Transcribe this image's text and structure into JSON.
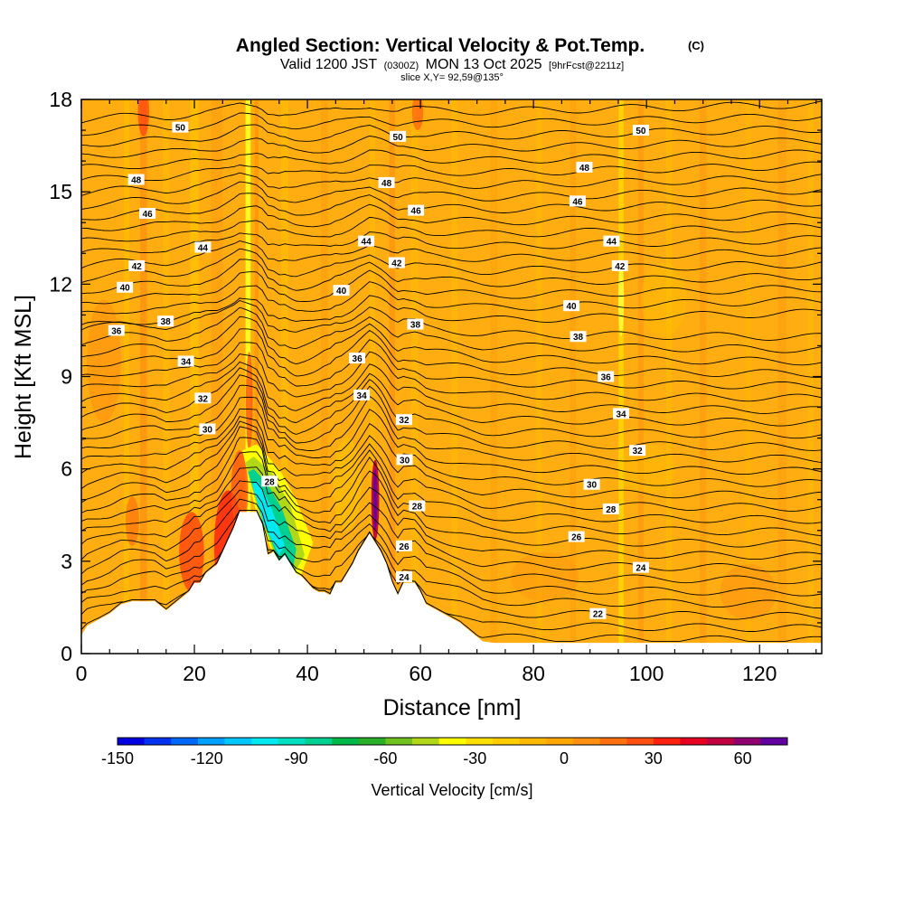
{
  "chart_data": {
    "type": "heatmap",
    "title": "Angled Section: Vertical Velocity & Pot.Temp.",
    "title_unit": "(C)",
    "subtitle_prefix": "Valid 1200 JST",
    "subtitle_utc": "(0300Z)",
    "subtitle_date": "MON 13 Oct 2025",
    "subtitle_fcst": "[9hrFcst@2211z]",
    "slice_label": "slice X,Y= 92,59@135°",
    "xlabel": "Distance [nm]",
    "ylabel": "Height [Kft MSL]",
    "xlim": [
      0,
      131
    ],
    "ylim": [
      0,
      18
    ],
    "xticks": [
      "0",
      "20",
      "40",
      "60",
      "80",
      "100",
      "120"
    ],
    "yticks": [
      "0",
      "3",
      "6",
      "9",
      "12",
      "15",
      "18"
    ],
    "colorbar": {
      "label": "Vertical Velocity [cm/s]",
      "tick_labels": [
        "-150",
        "-120",
        "-90",
        "-60",
        "-30",
        "0",
        "30",
        "60"
      ],
      "range": [
        -150,
        75
      ],
      "colors": [
        "#0000e0",
        "#0030f0",
        "#0068f8",
        "#00a0ff",
        "#00c8ff",
        "#00e8f0",
        "#00e0c0",
        "#00d090",
        "#00b848",
        "#28b028",
        "#70c020",
        "#b0d818",
        "#ffff00",
        "#ffe000",
        "#ffcc00",
        "#ffb800",
        "#ffa500",
        "#ff9010",
        "#ff7010",
        "#ff5010",
        "#ff2010",
        "#e80020",
        "#c00040",
        "#900070",
        "#6000a0"
      ]
    },
    "terrain_kft": [
      [
        0,
        0.6
      ],
      [
        1,
        0.9
      ],
      [
        3,
        1.1
      ],
      [
        5,
        1.3
      ],
      [
        7,
        1.6
      ],
      [
        9,
        1.7
      ],
      [
        13,
        1.7
      ],
      [
        15,
        1.4
      ],
      [
        17,
        1.7
      ],
      [
        19,
        2.0
      ],
      [
        20,
        2.3
      ],
      [
        21,
        2.3
      ],
      [
        22,
        2.6
      ],
      [
        24,
        2.9
      ],
      [
        25,
        3.3
      ],
      [
        26,
        3.7
      ],
      [
        27,
        4.1
      ],
      [
        28,
        4.6
      ],
      [
        29,
        4.6
      ],
      [
        31,
        4.6
      ],
      [
        32,
        4.2
      ],
      [
        33,
        3.2
      ],
      [
        34,
        3.3
      ],
      [
        35,
        3.0
      ],
      [
        36,
        3.2
      ],
      [
        37,
        2.9
      ],
      [
        38,
        2.6
      ],
      [
        39,
        2.5
      ],
      [
        40,
        2.3
      ],
      [
        41,
        2.1
      ],
      [
        42,
        2.0
      ],
      [
        43,
        2.0
      ],
      [
        44,
        1.9
      ],
      [
        45,
        2.3
      ],
      [
        46,
        2.3
      ],
      [
        47,
        2.6
      ],
      [
        48,
        2.9
      ],
      [
        49,
        3.3
      ],
      [
        50,
        3.6
      ],
      [
        51,
        3.9
      ],
      [
        52,
        3.6
      ],
      [
        53,
        3.3
      ],
      [
        54,
        2.9
      ],
      [
        55,
        2.3
      ],
      [
        56,
        1.9
      ],
      [
        57,
        2.3
      ],
      [
        58,
        2.3
      ],
      [
        59,
        2.3
      ],
      [
        60,
        2.0
      ],
      [
        61,
        1.6
      ],
      [
        63,
        1.4
      ],
      [
        65,
        1.2
      ],
      [
        67,
        1.0
      ],
      [
        69,
        0.7
      ],
      [
        71,
        0.4
      ],
      [
        73,
        0.35
      ],
      [
        131,
        0.35
      ]
    ],
    "theta_labels": [
      {
        "value": "50",
        "x": 17.5,
        "y": 17.1
      },
      {
        "value": "50",
        "x": 56,
        "y": 16.8
      },
      {
        "value": "50",
        "x": 99,
        "y": 17.0
      },
      {
        "value": "48",
        "x": 9.7,
        "y": 15.4
      },
      {
        "value": "48",
        "x": 54,
        "y": 15.3
      },
      {
        "value": "48",
        "x": 89,
        "y": 15.8
      },
      {
        "value": "46",
        "x": 11.7,
        "y": 14.3
      },
      {
        "value": "46",
        "x": 59.2,
        "y": 14.4
      },
      {
        "value": "46",
        "x": 87.8,
        "y": 14.7
      },
      {
        "value": "44",
        "x": 21.5,
        "y": 13.2
      },
      {
        "value": "44",
        "x": 50.4,
        "y": 13.4
      },
      {
        "value": "44",
        "x": 93.8,
        "y": 13.4
      },
      {
        "value": "42",
        "x": 9.8,
        "y": 12.6
      },
      {
        "value": "42",
        "x": 55.8,
        "y": 12.7
      },
      {
        "value": "42",
        "x": 95.3,
        "y": 12.6
      },
      {
        "value": "40",
        "x": 7.7,
        "y": 11.9
      },
      {
        "value": "40",
        "x": 46,
        "y": 11.8
      },
      {
        "value": "40",
        "x": 86.7,
        "y": 11.3
      },
      {
        "value": "38",
        "x": 14.9,
        "y": 10.8
      },
      {
        "value": "38",
        "x": 59.1,
        "y": 10.7
      },
      {
        "value": "38",
        "x": 87.9,
        "y": 10.3
      },
      {
        "value": "36",
        "x": 6.2,
        "y": 10.5
      },
      {
        "value": "36",
        "x": 48.8,
        "y": 9.6
      },
      {
        "value": "36",
        "x": 92.8,
        "y": 9.0
      },
      {
        "value": "34",
        "x": 18.5,
        "y": 9.5
      },
      {
        "value": "34",
        "x": 49.6,
        "y": 8.4
      },
      {
        "value": "34",
        "x": 95.5,
        "y": 7.8
      },
      {
        "value": "32",
        "x": 21.5,
        "y": 8.3
      },
      {
        "value": "32",
        "x": 57.1,
        "y": 7.6
      },
      {
        "value": "32",
        "x": 98.4,
        "y": 6.6
      },
      {
        "value": "30",
        "x": 22.3,
        "y": 7.3
      },
      {
        "value": "30",
        "x": 57.2,
        "y": 6.3
      },
      {
        "value": "30",
        "x": 90.3,
        "y": 5.5
      },
      {
        "value": "28",
        "x": 33.3,
        "y": 5.6
      },
      {
        "value": "28",
        "x": 59.4,
        "y": 4.8
      },
      {
        "value": "28",
        "x": 93.7,
        "y": 4.7
      },
      {
        "value": "26",
        "x": 57.1,
        "y": 3.5
      },
      {
        "value": "26",
        "x": 87.6,
        "y": 3.8
      },
      {
        "value": "24",
        "x": 57.1,
        "y": 2.5
      },
      {
        "value": "24",
        "x": 99,
        "y": 2.8
      },
      {
        "value": "22",
        "x": 91.4,
        "y": 1.3
      }
    ]
  }
}
